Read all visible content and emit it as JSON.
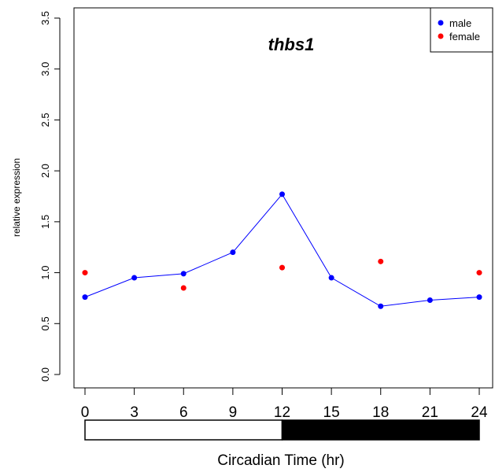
{
  "chart_data": {
    "type": "scatter",
    "title": "thbs1",
    "ylabel": "relative expression",
    "xlabel": "Circadian Time (hr)",
    "ylim": [
      0,
      3.5
    ],
    "xlim": [
      0,
      24
    ],
    "yticks": [
      "0.0",
      "0.5",
      "1.0",
      "1.5",
      "2.0",
      "2.5",
      "3.0",
      "3.5"
    ],
    "xticks": [
      "0",
      "3",
      "6",
      "9",
      "12",
      "15",
      "18",
      "21",
      "24"
    ],
    "legend_position": "top-right",
    "series": [
      {
        "name": "male",
        "color": "#0000ff",
        "connected": true,
        "x": [
          0,
          3,
          6,
          9,
          12,
          15,
          18,
          21,
          24
        ],
        "y": [
          0.76,
          0.95,
          0.99,
          1.2,
          1.77,
          0.95,
          0.67,
          0.73,
          0.76
        ]
      },
      {
        "name": "female",
        "color": "#ff0000",
        "connected": false,
        "x": [
          0,
          6,
          12,
          18,
          24
        ],
        "y": [
          1.0,
          0.85,
          1.05,
          1.11,
          1.0
        ]
      }
    ],
    "light_dark_bar": {
      "light_until": 12,
      "light_color": "#ffffff",
      "dark_color": "#000000"
    }
  }
}
